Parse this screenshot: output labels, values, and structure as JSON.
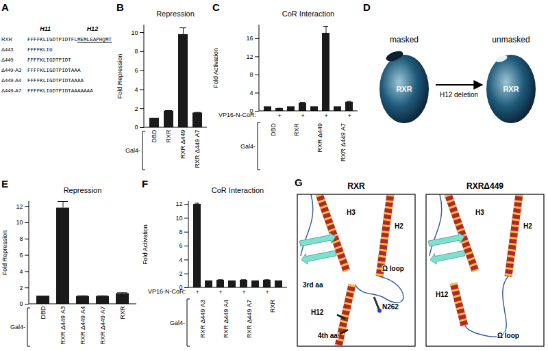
{
  "sequence_alignment": {
    "panel": "A",
    "helix_labels": [
      "H11",
      "H12"
    ],
    "rows": [
      {
        "name": "RXR",
        "sequence": "FFFFKLIGDTPIDTFLMEMLEAPHQMT"
      },
      {
        "name": "Δ443",
        "sequence": "FFFFKLIG"
      },
      {
        "name": "Δ449",
        "sequence": "FFFFKLIGDTPIDT"
      },
      {
        "name": "Δ449-A3",
        "sequence": "FFFFKLIGDTPIDTAAA"
      },
      {
        "name": "Δ449-A4",
        "sequence": "FFFFKLIGDTPIDTAAAA"
      },
      {
        "name": "Δ449-A7",
        "sequence": "FFFFKLIGDTPIDTAAAAAAA"
      }
    ]
  },
  "chart_data": [
    {
      "panel": "B",
      "type": "bar",
      "title": "Repression",
      "y_label": "Fold Repression",
      "categories": [
        "DBD",
        "RXR",
        "RXR Δ449",
        "RXR Δ449 A7"
      ],
      "values": [
        1.0,
        1.75,
        9.8,
        1.55
      ],
      "errors": [
        0,
        0.05,
        0.7,
        0.05
      ],
      "group_label": "Gal4-",
      "color": "#1a1a1a",
      "ylim": [
        0,
        10.8
      ],
      "yticks": [
        0,
        2,
        4,
        6,
        8,
        10
      ]
    },
    {
      "panel": "C",
      "type": "bar",
      "title": "CoR Interaction",
      "y_label": "Fold Activation",
      "categories": [
        null,
        "+",
        null,
        "+",
        null,
        "+",
        null,
        "+"
      ],
      "values": [
        1.0,
        0.6,
        1.0,
        1.8,
        1.0,
        17.2,
        1.0,
        2.0
      ],
      "errors": [
        0,
        0.05,
        0,
        0.15,
        0,
        1.5,
        0,
        0.15
      ],
      "row_label": "VP16-N-CoR:",
      "groups": [
        "DBD",
        "RXR",
        "RXR Δ449",
        "RXR Δ449 A7"
      ],
      "group_label": "Gal4-",
      "color": "#1a1a1a",
      "ylim": [
        0,
        19
      ],
      "yticks": [
        0,
        4,
        8,
        12,
        16
      ]
    },
    {
      "panel": "E",
      "type": "bar",
      "title": "Repression",
      "y_label": "Fold Repression",
      "categories": [
        "DBD",
        "RXR Δ449 A3",
        "RXR Δ449 A4",
        "RXR Δ449 A7",
        "RXR"
      ],
      "values": [
        1.0,
        11.8,
        0.95,
        0.95,
        1.3
      ],
      "errors": [
        0,
        0.8,
        0.08,
        0.08,
        0.1
      ],
      "group_label": "Gal4-",
      "color": "#1a1a1a",
      "ylim": [
        0,
        12.6
      ],
      "yticks": [
        0,
        2,
        4,
        6,
        8,
        10,
        12
      ]
    },
    {
      "panel": "F",
      "type": "bar",
      "title": "CoR Interaction",
      "y_label": "Fold Activation",
      "categories": [
        "+",
        null,
        "+",
        null,
        "+",
        null,
        "+",
        null
      ],
      "values": [
        12.0,
        1.0,
        1.1,
        1.0,
        1.1,
        1.0,
        1.1,
        1.0
      ],
      "errors": [
        0.15,
        0,
        0.05,
        0,
        0.05,
        0,
        0.05,
        0
      ],
      "row_label": "VP16-N-CoR:",
      "groups": [
        "RXR Δ449 A3",
        "RXR Δ449 A4",
        "RXR Δ449 A7",
        "RXR"
      ],
      "group_label": "Gal4-",
      "color": "#1a1a1a",
      "ylim": [
        0,
        12.4
      ],
      "yticks": [
        0,
        2,
        4,
        6,
        8,
        10,
        12
      ]
    }
  ],
  "diagram": {
    "panel": "D",
    "states": [
      {
        "label": "masked",
        "text": "RXR"
      },
      {
        "label": "unmasked",
        "text": "RXR"
      }
    ],
    "arrow_label": "H12 deletion"
  },
  "structures": {
    "panel": "G",
    "models": [
      {
        "title": "RXR",
        "labels": [
          "H3",
          "H2",
          "Ω loop",
          "3rd aa",
          "H12",
          "N262",
          "4th aa"
        ]
      },
      {
        "title": "RXRΔ449",
        "labels": [
          "H3",
          "H2",
          "H12",
          "Ω loop"
        ]
      }
    ]
  }
}
